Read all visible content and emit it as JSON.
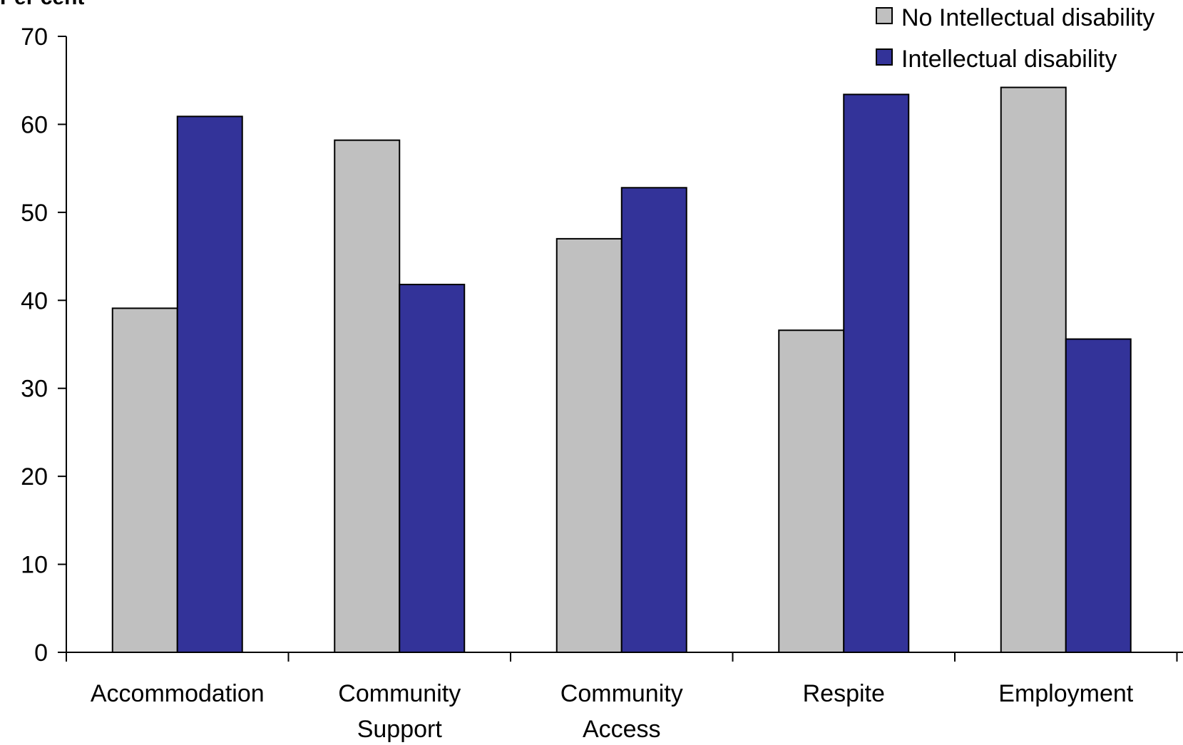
{
  "chart_data": {
    "type": "bar",
    "title": "",
    "ylabel": "Per cent",
    "xlabel": "",
    "ylim": [
      0,
      70
    ],
    "yticks": [
      "0",
      "10",
      "20",
      "30",
      "40",
      "50",
      "60",
      "70"
    ],
    "categories": [
      [
        "Accommodation"
      ],
      [
        "Community",
        "Support"
      ],
      [
        "Community",
        "Access"
      ],
      [
        "Respite"
      ],
      [
        "Employment"
      ]
    ],
    "series": [
      {
        "name": "No Intellectual disability",
        "color": "#c0c0c0",
        "values": [
          39.1,
          58.2,
          47.0,
          36.6,
          64.2
        ]
      },
      {
        "name": "Intellectual disability",
        "color": "#333399",
        "values": [
          60.9,
          41.8,
          52.8,
          63.4,
          35.6
        ]
      }
    ],
    "legend_position": "top-right",
    "grid": false
  }
}
